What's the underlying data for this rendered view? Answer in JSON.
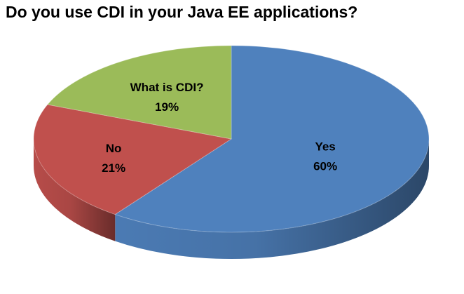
{
  "chart_data": {
    "type": "pie",
    "style": "3d",
    "title": "Do you use CDI in your Java EE applications?",
    "categories": [
      "Yes",
      "No",
      "What is CDI?"
    ],
    "values": [
      60,
      21,
      19
    ],
    "value_labels": [
      "60%",
      "21%",
      "19%"
    ],
    "colors": [
      "#4f81bd",
      "#c0504d",
      "#9bbb59"
    ],
    "legend": "none"
  }
}
